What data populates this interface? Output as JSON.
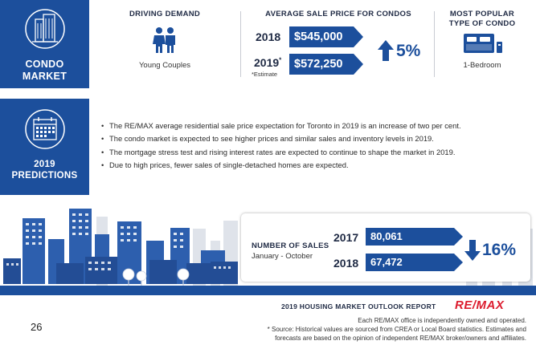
{
  "condo_market": {
    "title_line1": "CONDO",
    "title_line2": "MARKET",
    "driving_demand": {
      "header": "DRIVING DEMAND",
      "value": "Young Couples",
      "icon": "couple-icon"
    },
    "avg_price": {
      "header": "AVERAGE SALE PRICE FOR CONDOS",
      "rows": [
        {
          "year": "2018",
          "year_sup": "",
          "value": "$545,000"
        },
        {
          "year": "2019",
          "year_sup": "*",
          "value": "$572,250"
        }
      ],
      "estimate_note": "*Estimate",
      "change": "5%",
      "direction": "up"
    },
    "popular_type": {
      "header_line1": "MOST POPULAR",
      "header_line2": "TYPE OF CONDO",
      "value": "1-Bedroom",
      "icon": "bed-icon"
    }
  },
  "predictions": {
    "title_line1": "2019",
    "title_line2": "PREDICTIONS",
    "icon": "calendar-icon",
    "bullets": [
      "The RE/MAX average residential sale price expectation for Toronto in 2019 is an increase of two per cent.",
      "The condo market is expected to see higher prices and similar sales and inventory levels in 2019.",
      "The mortgage stress test and rising interest rates are expected to continue to shape the market in 2019.",
      "Due to high prices, fewer sales of single-detached homes are expected."
    ]
  },
  "sales": {
    "label": "NUMBER OF SALES",
    "period": "January - October",
    "rows": [
      {
        "year": "2017",
        "value": "80,061"
      },
      {
        "year": "2018",
        "value": "67,472"
      }
    ],
    "change": "16%",
    "direction": "down"
  },
  "footer": {
    "page_number": "26",
    "report_title": "2019 HOUSING MARKET OUTLOOK REPORT",
    "brand": "RE/MAX",
    "note1": "Each RE/MAX office is independently owned and operated.",
    "note2": "* Source: Historical values are sourced from CREA or Local Board statistics. Estimates and",
    "note3": "forecasts are based on the opinion of independent RE/MAX broker/owners and affiliates."
  },
  "colors": {
    "brand_blue": "#1c4f9c",
    "remax_red": "#dc1c2e",
    "building_blue": "#2d5fae",
    "building_light": "#dfe3ea"
  }
}
